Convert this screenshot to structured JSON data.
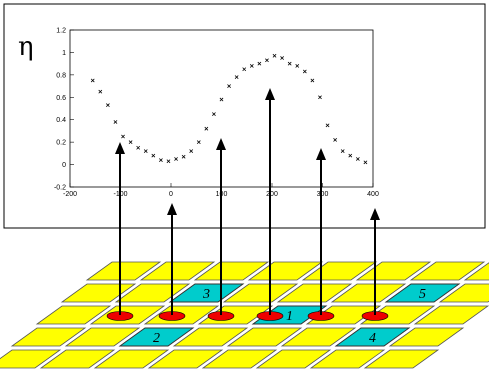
{
  "plot": {
    "symbol": "η",
    "y_ticks": [
      "1.2",
      "1",
      "0.8",
      "0.6",
      "0.4",
      "0.2",
      "0",
      "-0.2"
    ],
    "x_ticks": [
      "-200",
      "-100",
      "0",
      "100",
      "200",
      "300",
      "400"
    ]
  },
  "chart_data": {
    "type": "scatter",
    "title": "",
    "xlabel": "",
    "ylabel": "η",
    "xlim": [
      -200,
      400
    ],
    "ylim": [
      -0.2,
      1.2
    ],
    "grid": false,
    "series": [
      {
        "marker": "x",
        "x": [
          -155,
          -140,
          -125,
          -110,
          -95,
          -80,
          -65,
          -50,
          -35,
          -20,
          -5,
          10,
          25,
          40,
          55,
          70,
          85,
          100,
          115,
          130,
          145,
          160,
          175,
          190,
          205,
          220,
          235,
          250,
          265,
          280,
          295,
          310,
          325,
          340,
          355,
          370,
          385
        ],
        "y": [
          0.75,
          0.65,
          0.53,
          0.38,
          0.25,
          0.2,
          0.15,
          0.12,
          0.08,
          0.04,
          0.03,
          0.05,
          0.07,
          0.12,
          0.2,
          0.32,
          0.45,
          0.58,
          0.7,
          0.78,
          0.85,
          0.88,
          0.9,
          0.93,
          0.97,
          0.95,
          0.9,
          0.88,
          0.83,
          0.75,
          0.6,
          0.35,
          0.22,
          0.12,
          0.08,
          0.05,
          0.02
        ]
      }
    ]
  },
  "grid_diagram": {
    "cell_color": "#ffff00",
    "highlight_color": "#00cccc",
    "hit_color": "#ee0000",
    "highlighted_cells": [
      {
        "number": "3"
      },
      {
        "number": "5"
      },
      {
        "number": "1"
      },
      {
        "number": "2"
      },
      {
        "number": "4"
      }
    ]
  }
}
